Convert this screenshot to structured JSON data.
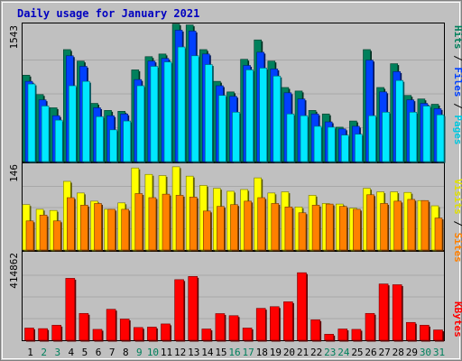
{
  "title": "Daily usage for January 2021",
  "colors": {
    "hits": "#00805c",
    "files": "#0040ff",
    "pages": "#00e8ff",
    "visits": "#ffff00",
    "sites": "#ff8000",
    "kbytes": "#ff0000",
    "title": "#0000c0",
    "panel_bg": "#c0c0c0",
    "weekend_label": "#00805c",
    "weekday_label": "#000000"
  },
  "chart_data": [
    {
      "type": "bar",
      "panel": "hits-files-pages",
      "ymax_label": "1543",
      "ylim": [
        0,
        1543
      ],
      "legend": [
        "Pages",
        "Files",
        "Hits"
      ],
      "categories": [
        "1",
        "2",
        "3",
        "4",
        "5",
        "6",
        "7",
        "8",
        "9",
        "10",
        "11",
        "12",
        "13",
        "14",
        "15",
        "16",
        "17",
        "18",
        "19",
        "20",
        "21",
        "22",
        "23",
        "24",
        "25",
        "26",
        "27",
        "28",
        "29",
        "30",
        "31"
      ],
      "series": [
        {
          "name": "Hits",
          "values": [
            980,
            760,
            610,
            1270,
            1140,
            660,
            580,
            570,
            1040,
            1190,
            1220,
            1560,
            1550,
            1270,
            910,
            790,
            1160,
            1380,
            1140,
            840,
            800,
            580,
            540,
            390,
            460,
            1270,
            840,
            1110,
            750,
            710,
            650
          ]
        },
        {
          "name": "Files",
          "values": [
            910,
            700,
            520,
            1200,
            1080,
            610,
            520,
            540,
            930,
            1140,
            1170,
            1490,
            1480,
            1220,
            860,
            740,
            1090,
            1240,
            1050,
            780,
            710,
            540,
            450,
            370,
            400,
            1150,
            790,
            1020,
            700,
            660,
            600
          ]
        },
        {
          "name": "Pages",
          "values": [
            880,
            630,
            470,
            860,
            910,
            510,
            360,
            460,
            860,
            1080,
            1130,
            1300,
            1200,
            1100,
            750,
            560,
            1040,
            1060,
            970,
            540,
            520,
            400,
            390,
            300,
            310,
            520,
            560,
            920,
            560,
            630,
            530
          ]
        }
      ]
    },
    {
      "type": "bar",
      "panel": "visits-sites",
      "ymax_label": "146",
      "ylim": [
        0,
        146
      ],
      "legend": [
        "Sites",
        "Visits"
      ],
      "categories": [
        "1",
        "2",
        "3",
        "4",
        "5",
        "6",
        "7",
        "8",
        "9",
        "10",
        "11",
        "12",
        "13",
        "14",
        "15",
        "16",
        "17",
        "18",
        "19",
        "20",
        "21",
        "22",
        "23",
        "24",
        "25",
        "26",
        "27",
        "28",
        "29",
        "30",
        "31"
      ],
      "series": [
        {
          "name": "Visits",
          "values": [
            78,
            70,
            68,
            118,
            98,
            84,
            70,
            81,
            141,
            130,
            128,
            143,
            127,
            111,
            106,
            101,
            104,
            124,
            98,
            100,
            74,
            94,
            80,
            79,
            72,
            106,
            100,
            100,
            99,
            85,
            76
          ]
        },
        {
          "name": "Sites",
          "values": [
            50,
            60,
            50,
            90,
            77,
            80,
            70,
            70,
            97,
            90,
            96,
            94,
            91,
            67,
            75,
            78,
            84,
            90,
            80,
            74,
            64,
            77,
            79,
            75,
            70,
            95,
            80,
            84,
            87,
            85,
            55
          ]
        }
      ]
    },
    {
      "type": "bar",
      "panel": "kbytes",
      "ymax_label": "414862",
      "ylim": [
        0,
        414862
      ],
      "legend": [
        "KBytes"
      ],
      "categories": [
        "1",
        "2",
        "3",
        "4",
        "5",
        "6",
        "7",
        "8",
        "9",
        "10",
        "11",
        "12",
        "13",
        "14",
        "15",
        "16",
        "17",
        "18",
        "19",
        "20",
        "21",
        "22",
        "23",
        "24",
        "25",
        "26",
        "27",
        "28",
        "29",
        "30",
        "31"
      ],
      "series": [
        {
          "name": "KBytes",
          "values": [
            65000,
            62000,
            80000,
            330000,
            143000,
            58000,
            165000,
            113000,
            68000,
            70000,
            87000,
            323000,
            340000,
            60000,
            142000,
            131000,
            65000,
            170000,
            179000,
            205000,
            360000,
            109000,
            32000,
            60000,
            58000,
            143000,
            300000,
            296000,
            95000,
            80000,
            55000
          ]
        }
      ]
    }
  ]
}
